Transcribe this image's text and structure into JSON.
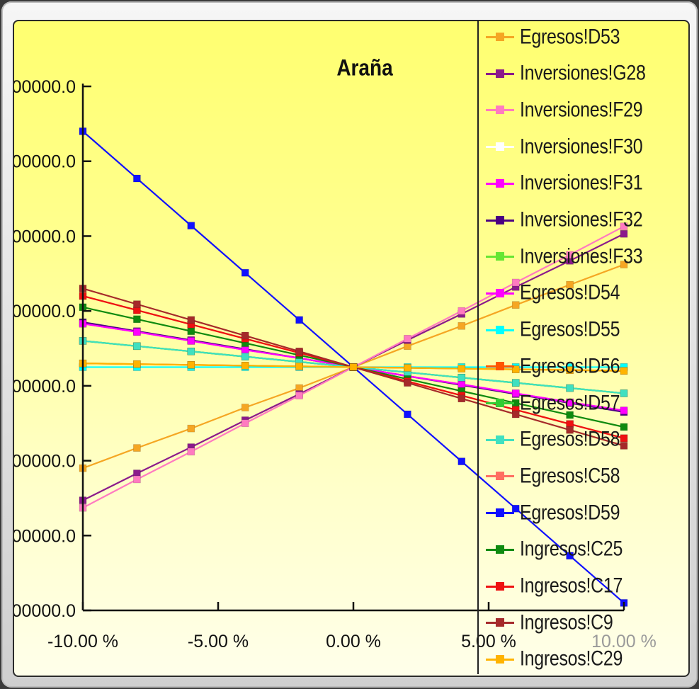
{
  "chart_data": {
    "type": "line",
    "title": "Araña",
    "x": [
      -10,
      -8,
      -6,
      -4,
      -2,
      0,
      2,
      4,
      6,
      8,
      10
    ],
    "x_tick_values": [
      -10,
      -5,
      0,
      5,
      10
    ],
    "x_tick_labels": [
      "-10.00 %",
      "-5.00 %",
      "0.00 %",
      "5.00 %",
      "10.00 %"
    ],
    "y_tick_labels": [
      "00000.0",
      "00000.0",
      "00000.0",
      "00000.0",
      "00000.0",
      "00000.0",
      "00000.0",
      "00000.0"
    ],
    "y_domain": [
      0,
      7
    ],
    "ylim_note": "y tick labels are partially cropped; values in tick-step units",
    "grid": false,
    "legend_position": "right",
    "series": [
      {
        "name": "Egresos!D53",
        "color": "#f5a623",
        "values": [
          1.9,
          2.17,
          2.43,
          2.71,
          2.97,
          3.25,
          3.53,
          3.8,
          4.08,
          4.35,
          4.62
        ]
      },
      {
        "name": "Inversiones!G28",
        "color": "#8b1a8b",
        "values": [
          1.47,
          1.83,
          2.18,
          2.54,
          2.89,
          3.25,
          3.61,
          3.96,
          4.32,
          4.67,
          5.03
        ]
      },
      {
        "name": "Inversiones!F29",
        "color": "#ff7ac0",
        "values": [
          1.37,
          1.75,
          2.12,
          2.5,
          2.87,
          3.25,
          3.63,
          4.0,
          4.38,
          4.75,
          5.13
        ]
      },
      {
        "name": "Inversiones!F30",
        "color": "#ffffff",
        "values": [
          3.25,
          3.25,
          3.25,
          3.25,
          3.25,
          3.25,
          3.25,
          3.25,
          3.25,
          3.25,
          3.25
        ]
      },
      {
        "name": "Inversiones!F31",
        "color": "#ff00ff",
        "values": [
          3.83,
          3.72,
          3.6,
          3.48,
          3.37,
          3.25,
          3.13,
          3.02,
          2.9,
          2.78,
          2.67
        ]
      },
      {
        "name": "Inversiones!F32",
        "color": "#4b0082",
        "values": [
          3.85,
          3.73,
          3.61,
          3.49,
          3.37,
          3.25,
          3.13,
          3.01,
          2.89,
          2.77,
          2.65
        ]
      },
      {
        "name": "Inversiones!F33",
        "color": "#66e633",
        "values": [
          3.6,
          3.53,
          3.46,
          3.39,
          3.32,
          3.25,
          3.18,
          3.11,
          3.04,
          2.97,
          2.9
        ]
      },
      {
        "name": "Egresos!D54",
        "color": "#ff00ff",
        "values": [
          3.83,
          3.72,
          3.6,
          3.48,
          3.37,
          3.25,
          3.13,
          3.02,
          2.9,
          2.78,
          2.67
        ]
      },
      {
        "name": "Egresos!D55",
        "color": "#00ffff",
        "values": [
          3.25,
          3.25,
          3.25,
          3.25,
          3.25,
          3.25,
          3.25,
          3.25,
          3.25,
          3.25,
          3.25
        ]
      },
      {
        "name": "Egresos!D56",
        "color": "#ff5500",
        "values": [
          3.3,
          3.29,
          3.28,
          3.27,
          3.26,
          3.25,
          3.24,
          3.23,
          3.22,
          3.21,
          3.2
        ]
      },
      {
        "name": "Egresos!D57",
        "color": "#33cc33",
        "values": [
          3.6,
          3.53,
          3.46,
          3.39,
          3.32,
          3.25,
          3.18,
          3.11,
          3.04,
          2.97,
          2.9
        ]
      },
      {
        "name": "Egresos!D58",
        "color": "#40e0c0",
        "values": [
          3.6,
          3.53,
          3.46,
          3.39,
          3.32,
          3.25,
          3.18,
          3.11,
          3.04,
          2.97,
          2.9
        ]
      },
      {
        "name": "Egresos!C58",
        "color": "#ff6f61",
        "values": [
          4.2,
          4.01,
          3.82,
          3.63,
          3.44,
          3.25,
          3.06,
          2.87,
          2.68,
          2.49,
          2.3
        ]
      },
      {
        "name": "Egresos!D59",
        "color": "#1010ff",
        "values": [
          6.4,
          5.77,
          5.14,
          4.51,
          3.88,
          3.25,
          2.62,
          1.99,
          1.36,
          0.73,
          0.1
        ]
      },
      {
        "name": "Ingresos!C25",
        "color": "#0f8a0f",
        "values": [
          4.05,
          3.89,
          3.73,
          3.57,
          3.41,
          3.25,
          3.09,
          2.93,
          2.77,
          2.61,
          2.45
        ]
      },
      {
        "name": "Ingresos!C17",
        "color": "#ee1111",
        "values": [
          4.2,
          4.01,
          3.82,
          3.63,
          3.44,
          3.25,
          3.06,
          2.87,
          2.68,
          2.49,
          2.3
        ]
      },
      {
        "name": "Ingresos!C9",
        "color": "#a52a2a",
        "values": [
          4.3,
          4.09,
          3.88,
          3.67,
          3.46,
          3.25,
          3.04,
          2.83,
          2.62,
          2.41,
          2.2
        ]
      },
      {
        "name": "Ingresos!C29",
        "color": "#ffb300",
        "values": [
          3.3,
          3.29,
          3.28,
          3.27,
          3.26,
          3.25,
          3.24,
          3.23,
          3.22,
          3.21,
          3.2
        ]
      }
    ]
  }
}
